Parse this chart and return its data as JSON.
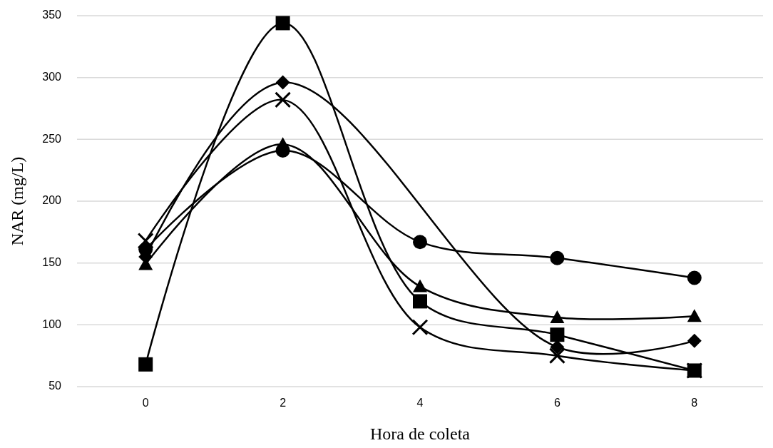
{
  "chart_data": {
    "type": "line",
    "xlabel": "Hora de coleta",
    "ylabel": "NAR (mg/L)",
    "categories": [
      "0",
      "2",
      "4",
      "6",
      "8"
    ],
    "series": [
      {
        "color": "#000000",
        "marker": "circle",
        "values": [
          161,
          241,
          167,
          154,
          138
        ]
      },
      {
        "color": "#000000",
        "marker": "square",
        "values": [
          68,
          344,
          119,
          92,
          63
        ]
      },
      {
        "color": "#000000",
        "marker": "diamond",
        "values": [
          155,
          296,
          null,
          82,
          87
        ]
      },
      {
        "color": "#000000",
        "marker": "triangle",
        "values": [
          149,
          246,
          131,
          106,
          107
        ]
      },
      {
        "color": "#000000",
        "marker": "cross",
        "values": [
          168,
          282,
          98,
          75,
          63
        ]
      }
    ],
    "ylim": [
      50,
      350
    ],
    "yticks": [
      50,
      100,
      150,
      200,
      250,
      300,
      350
    ],
    "grid": "y",
    "line_style": "solid"
  }
}
